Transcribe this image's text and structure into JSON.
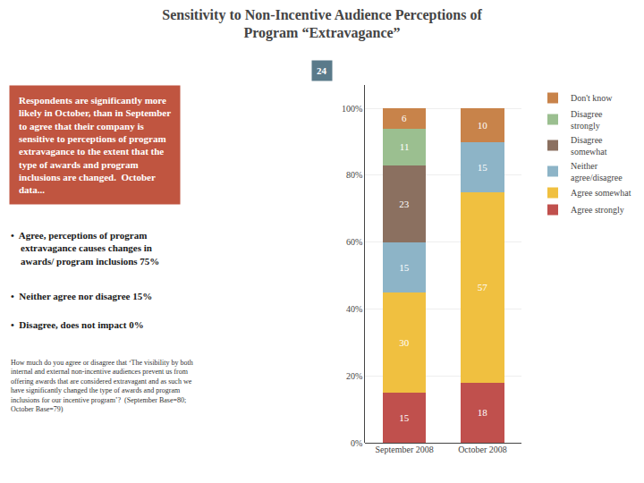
{
  "chart_data": {
    "type": "bar",
    "stacked": true,
    "title": "Sensitivity to Non-Incentive Audience Perceptions of\nProgram “Extravagance”",
    "categories": [
      "September 2008",
      "October 2008"
    ],
    "series": [
      {
        "name": "Agree strongly",
        "color": "#c0504d",
        "values": [
          15,
          18
        ]
      },
      {
        "name": "Agree somewhat",
        "color": "#f0c040",
        "values": [
          30,
          57
        ]
      },
      {
        "name": "Neither\nagree/disagree",
        "color": "#8db4c7",
        "values": [
          15,
          15
        ]
      },
      {
        "name": "Disagree\nsomewhat",
        "color": "#8b7060",
        "values": [
          23,
          0
        ]
      },
      {
        "name": "Disagree\nstrongly",
        "color": "#9bbf90",
        "values": [
          11,
          0
        ]
      },
      {
        "name": "Don't know",
        "color": "#c8834a",
        "values": [
          6,
          10
        ]
      }
    ],
    "data_labels": true,
    "ylim": [
      0,
      107
    ],
    "yticks": [
      {
        "value": 0,
        "label": "0%"
      },
      {
        "value": 20,
        "label": "20%"
      },
      {
        "value": 40,
        "label": "40%"
      },
      {
        "value": 60,
        "label": "60%"
      },
      {
        "value": 80,
        "label": "80%"
      },
      {
        "value": 100,
        "label": "100%"
      }
    ],
    "grid": true,
    "legend": "right",
    "annotations": [
      {
        "text": "24",
        "color": "#5a7a8a"
      },
      {
        "text": "Respondents are significantly more\nlikely in October, than in September\nto agree that their company is\nsensitive to perceptions of program\nextravagance to the extent that the\ntype of awards and program\ninclusions are changed.  October\ndata...",
        "color": "#c05540"
      },
      {
        "text": "•  Agree, perceptions of program\n    extravagance causes changes in\n    awards/ program inclusions 75%"
      },
      {
        "text": "•  Neither agree nor disagree 15%"
      },
      {
        "text": "•  Disagree, does not impact 0%"
      },
      {
        "text": "How much do you agree or disagree that ‘The visibility by both\ninternal and external non-incentive audiences prevent us from\noffering awards that are considered extravagant and as such we\nhave significantly changed the type of awards and program\ninclusions for our incentive program’?  (September Base=80;\nOctober Base=79)"
      }
    ]
  }
}
